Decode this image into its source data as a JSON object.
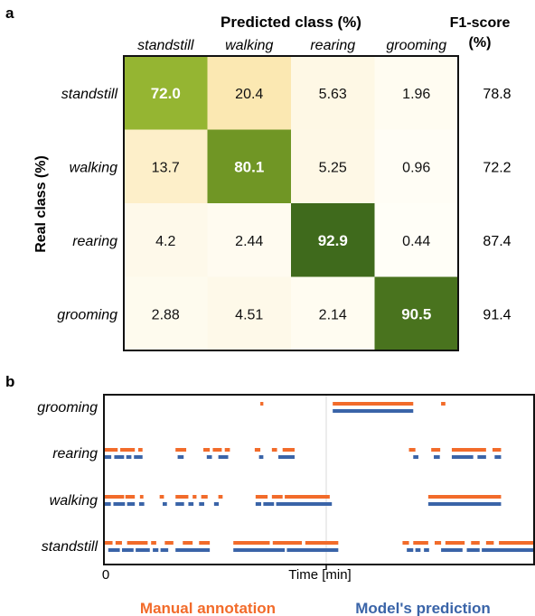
{
  "panel_labels": {
    "a": "a",
    "b": "b"
  },
  "chart_data": [
    {
      "type": "heatmap",
      "title": "Predicted class (%)",
      "xlabel": "Predicted class (%)",
      "ylabel": "Real class (%)",
      "columns": [
        "standstill",
        "walking",
        "rearing",
        "grooming"
      ],
      "rows": [
        "standstill",
        "walking",
        "rearing",
        "grooming"
      ],
      "values": [
        [
          "72.0",
          "20.4",
          "5.63",
          "1.96"
        ],
        [
          "13.7",
          "80.1",
          "5.25",
          "0.96"
        ],
        [
          "4.2",
          "2.44",
          "92.9",
          "0.44"
        ],
        [
          "2.88",
          "4.51",
          "2.14",
          "90.5"
        ]
      ],
      "f1_header_line1": "F1-score",
      "f1_header_line2": "(%)",
      "f1_scores": [
        "78.8",
        "72.2",
        "87.4",
        "91.4"
      ],
      "colors": {
        "low": "#fffef8",
        "mid": "#fbe6ad",
        "high": "#3f6a1c",
        "diag_mid": "#8fb22a"
      }
    },
    {
      "type": "timeline",
      "xlabel": "Time [min]",
      "x_tick_labels": [
        "0"
      ],
      "y_categories": [
        "grooming",
        "rearing",
        "walking",
        "standstill"
      ],
      "x_range": [
        0,
        100
      ],
      "series": [
        {
          "name": "Manual annotation",
          "color": "#f26b2a",
          "segments": {
            "grooming": [
              [
                36.3,
                37
              ],
              [
                53.2,
                72
              ],
              [
                78.5,
                79.5
              ]
            ],
            "rearing": [
              [
                0,
                3
              ],
              [
                3.6,
                7
              ],
              [
                7.8,
                8.8
              ],
              [
                16.5,
                19
              ],
              [
                23,
                24.5
              ],
              [
                25.2,
                27.3
              ],
              [
                28,
                29.2
              ],
              [
                35,
                36.3
              ],
              [
                39,
                40.2
              ],
              [
                41.5,
                44.3
              ],
              [
                71,
                72.5
              ],
              [
                76.2,
                78.3
              ],
              [
                81,
                89
              ],
              [
                90.5,
                92.5
              ]
            ],
            "walking": [
              [
                0,
                4.5
              ],
              [
                4.8,
                7
              ],
              [
                8.2,
                9
              ],
              [
                12.8,
                13.8
              ],
              [
                16.5,
                19.5
              ],
              [
                20.5,
                21.4
              ],
              [
                22.5,
                24
              ],
              [
                26.5,
                27.5
              ],
              [
                35.2,
                38
              ],
              [
                39,
                41.5
              ],
              [
                42,
                52.5
              ],
              [
                75.5,
                92.5
              ]
            ],
            "standstill": [
              [
                0,
                1.8
              ],
              [
                2.5,
                4
              ],
              [
                5.2,
                10
              ],
              [
                10.8,
                12
              ],
              [
                14,
                16
              ],
              [
                18.2,
                20.5
              ],
              [
                22,
                24.5
              ],
              [
                30,
                38.5
              ],
              [
                39.2,
                46
              ],
              [
                46.8,
                54.5
              ],
              [
                69.5,
                71
              ],
              [
                72,
                75.5
              ],
              [
                77,
                78.5
              ],
              [
                79.5,
                84
              ],
              [
                85.5,
                87.5
              ],
              [
                89,
                90.8
              ],
              [
                92,
                100
              ]
            ]
          }
        },
        {
          "name": "Model's prediction",
          "color": "#3a64a8",
          "segments": {
            "grooming": [
              [
                53.2,
                72
              ]
            ],
            "rearing": [
              [
                0,
                1.5
              ],
              [
                2.2,
                4.5
              ],
              [
                5,
                6.2
              ],
              [
                6.8,
                8.8
              ],
              [
                17,
                18.4
              ],
              [
                23.8,
                25
              ],
              [
                26.5,
                28.8
              ],
              [
                36,
                37
              ],
              [
                40.5,
                44.3
              ],
              [
                72,
                73.2
              ],
              [
                76.8,
                78.2
              ],
              [
                81,
                86
              ],
              [
                87,
                89
              ],
              [
                91,
                92.5
              ]
            ],
            "walking": [
              [
                0,
                1.4
              ],
              [
                2,
                4.7
              ],
              [
                5.2,
                7
              ],
              [
                8,
                9.2
              ],
              [
                13.5,
                14.5
              ],
              [
                16.5,
                18.5
              ],
              [
                19.5,
                20.7
              ],
              [
                22,
                23.2
              ],
              [
                25.5,
                26.6
              ],
              [
                35.2,
                36.5
              ],
              [
                37,
                39.5
              ],
              [
                40,
                53
              ],
              [
                75.5,
                92.5
              ]
            ],
            "standstill": [
              [
                0.8,
                3.5
              ],
              [
                4,
                6.7
              ],
              [
                7.2,
                10.5
              ],
              [
                11.2,
                12.5
              ],
              [
                13,
                14.8
              ],
              [
                16.5,
                24.5
              ],
              [
                30,
                42
              ],
              [
                42.5,
                54.5
              ],
              [
                70.5,
                72
              ],
              [
                72.5,
                73.7
              ],
              [
                74.5,
                75.7
              ],
              [
                78.5,
                83.5
              ],
              [
                84.5,
                87.5
              ],
              [
                88,
                100
              ]
            ]
          }
        }
      ]
    }
  ]
}
